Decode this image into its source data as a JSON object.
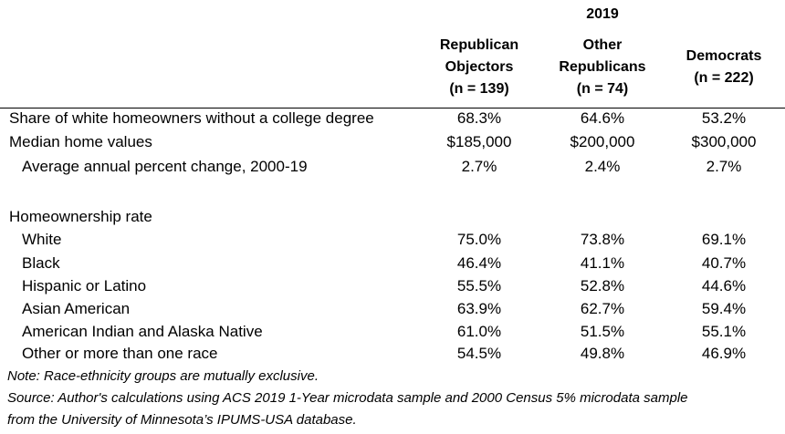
{
  "header": {
    "year": "2019",
    "columns": [
      {
        "lines": [
          "Republican",
          "Objectors",
          "(n = 139)"
        ]
      },
      {
        "lines": [
          "Other",
          "Republicans",
          "(n = 74)"
        ]
      },
      {
        "lines": [
          "Democrats",
          "(n = 222)"
        ]
      }
    ]
  },
  "rows": [
    {
      "label": "Share of white homeowners without a college degree",
      "values": [
        "68.3%",
        "64.6%",
        "53.2%"
      ]
    },
    {
      "label": "Median home values",
      "values": [
        "$185,000",
        "$200,000",
        "$300,000"
      ]
    },
    {
      "label": "Average annual percent change, 2000-19",
      "values": [
        "2.7%",
        "2.4%",
        "2.7%"
      ]
    }
  ],
  "homeownership": {
    "title": "Homeownership rate",
    "rows": [
      {
        "label": "White",
        "values": [
          "75.0%",
          "73.8%",
          "69.1%"
        ]
      },
      {
        "label": "Black",
        "values": [
          "46.4%",
          "41.1%",
          "40.7%"
        ]
      },
      {
        "label": "Hispanic or Latino",
        "values": [
          "55.5%",
          "52.8%",
          "44.6%"
        ]
      },
      {
        "label": "Asian American",
        "values": [
          "63.9%",
          "62.7%",
          "59.4%"
        ]
      },
      {
        "label": "American Indian and Alaska Native",
        "values": [
          "61.0%",
          "51.5%",
          "55.1%"
        ]
      },
      {
        "label": "Other or more than one race",
        "values": [
          "54.5%",
          "49.8%",
          "46.9%"
        ]
      }
    ]
  },
  "notes": {
    "note": "Note: Race-ethnicity groups are mutually exclusive.",
    "source_line1": "Source: Author's calculations using ACS 2019 1-Year microdata sample and 2000 Census 5% microdata sample",
    "source_line2": "from the University of Minnesota’s IPUMS-USA database."
  }
}
